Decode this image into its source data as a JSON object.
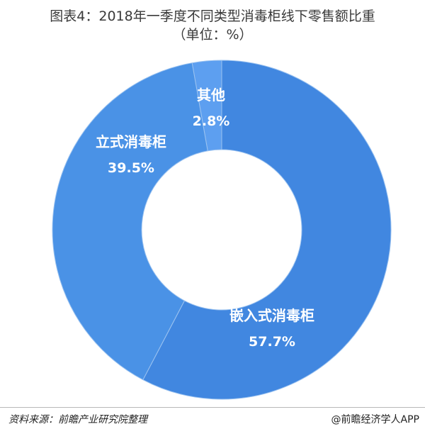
{
  "header": {
    "title": "图表4：2018年一季度不同类型消毒柜线下零售额比重",
    "unit": "（单位：%）"
  },
  "footer": {
    "source": "资料来源：前瞻产业研究院整理",
    "brand": "@前瞻经济学人APP"
  },
  "colors": {
    "slice_main": "#4187e0",
    "slice_second": "#4a92e6",
    "slice_small": "#5d9ff0",
    "divider": "#9cc3f0",
    "label": "#ffffff"
  },
  "chart_data": {
    "type": "pie",
    "donut": true,
    "title": "图表4：2018年一季度不同类型消毒柜线下零售额比重",
    "categories": [
      "其他",
      "嵌入式消毒柜",
      "立式消毒柜"
    ],
    "values": [
      2.8,
      57.7,
      39.5
    ],
    "value_labels": [
      "2.8%",
      "57.7%",
      "39.5%"
    ]
  }
}
